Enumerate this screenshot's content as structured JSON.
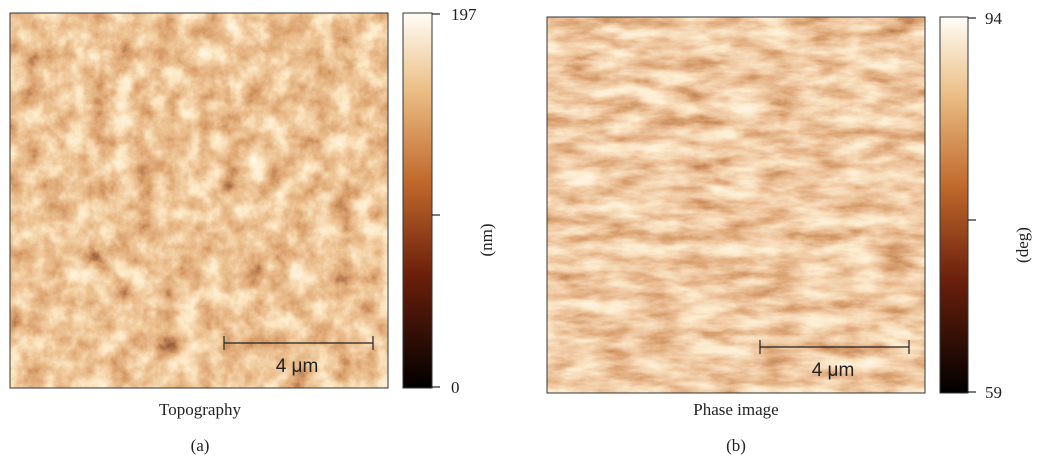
{
  "panels": [
    {
      "caption": "Topography",
      "label": "(a)",
      "scale_bar": "4 μm",
      "colorbar": {
        "max": 197,
        "min": 0,
        "unit": "(nm)"
      }
    },
    {
      "caption": "Phase image",
      "label": "(b)",
      "scale_bar": "4 μm",
      "colorbar": {
        "max": 94,
        "min": 59,
        "unit": "(deg)"
      }
    }
  ]
}
